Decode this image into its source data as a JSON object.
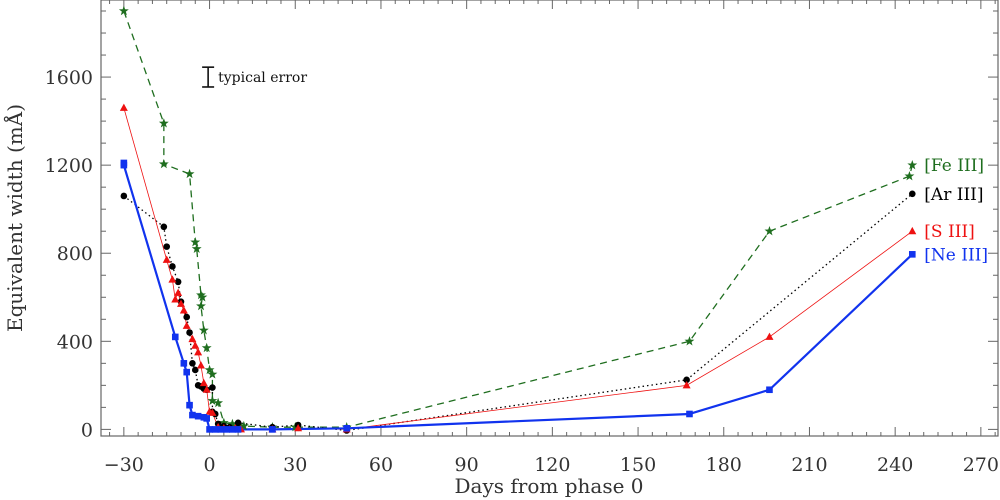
{
  "chart_data": {
    "type": "line",
    "xlabel": "Days from phase 0",
    "ylabel": "Equivalent width (mÅ)",
    "xlim": [
      -38,
      276
    ],
    "ylim": [
      -30,
      1950
    ],
    "x_ticks": [
      -30,
      0,
      30,
      60,
      90,
      120,
      150,
      180,
      210,
      240,
      270
    ],
    "y_ticks": [
      0,
      400,
      800,
      1200,
      1600
    ],
    "grid": false,
    "legend": "inline-right",
    "annotation": {
      "label": "typical error",
      "x": -0.5,
      "y_center": 1600,
      "half_height": 45
    },
    "series": [
      {
        "name": "[Fe III]",
        "color": "#1f6e1f",
        "dash": "7,5",
        "width": 1.3,
        "marker": "star",
        "points": [
          [
            -30,
            1900
          ],
          [
            -16,
            1390
          ],
          [
            -16,
            1205
          ],
          [
            -7,
            1160
          ],
          [
            -5,
            850
          ],
          [
            -4.5,
            820
          ],
          [
            -3,
            610
          ],
          [
            -2.5,
            600
          ],
          [
            -3,
            560
          ],
          [
            -2,
            450
          ],
          [
            -1,
            370
          ],
          [
            0,
            270
          ],
          [
            1,
            250
          ],
          [
            1,
            130
          ],
          [
            3,
            120
          ],
          [
            5,
            30
          ],
          [
            8,
            25
          ],
          [
            10,
            20
          ],
          [
            12,
            15
          ],
          [
            22,
            10
          ],
          [
            30,
            10
          ],
          [
            48,
            10
          ],
          [
            168,
            400
          ],
          [
            196,
            900
          ],
          [
            245,
            1150
          ],
          [
            246,
            1200
          ]
        ]
      },
      {
        "name": "[Ar III]",
        "color": "#000000",
        "dash": "1.5,3",
        "width": 1.3,
        "marker": "circle",
        "points": [
          [
            -30,
            1060
          ],
          [
            -16,
            920
          ],
          [
            -15,
            830
          ],
          [
            -13,
            740
          ],
          [
            -11,
            670
          ],
          [
            -10,
            580
          ],
          [
            -8,
            510
          ],
          [
            -7,
            440
          ],
          [
            -6,
            300
          ],
          [
            -5,
            270
          ],
          [
            -4,
            200
          ],
          [
            -3,
            195
          ],
          [
            -2,
            185
          ],
          [
            -1,
            180
          ],
          [
            1,
            190
          ],
          [
            1,
            80
          ],
          [
            2,
            70
          ],
          [
            3,
            25
          ],
          [
            5,
            15
          ],
          [
            7,
            10
          ],
          [
            10,
            30
          ],
          [
            22,
            10
          ],
          [
            31,
            20
          ],
          [
            48,
            -5
          ],
          [
            167,
            225
          ],
          [
            246,
            1070
          ]
        ]
      },
      {
        "name": "[S III]",
        "color": "#ee1111",
        "dash": "",
        "width": 0.8,
        "marker": "triangle",
        "points": [
          [
            -30,
            1460
          ],
          [
            -15,
            770
          ],
          [
            -13,
            680
          ],
          [
            -12,
            590
          ],
          [
            -11,
            620
          ],
          [
            -10,
            570
          ],
          [
            -9,
            540
          ],
          [
            -8,
            470
          ],
          [
            -6,
            410
          ],
          [
            -5,
            380
          ],
          [
            -4,
            350
          ],
          [
            -3,
            290
          ],
          [
            -2,
            210
          ],
          [
            -1,
            180
          ],
          [
            0,
            80
          ],
          [
            1,
            75
          ],
          [
            3,
            10
          ],
          [
            5,
            5
          ],
          [
            7,
            0
          ],
          [
            9,
            5
          ],
          [
            11,
            0
          ],
          [
            22,
            0
          ],
          [
            31,
            5
          ],
          [
            48,
            0
          ],
          [
            167,
            200
          ],
          [
            196,
            420
          ],
          [
            246,
            900
          ]
        ]
      },
      {
        "name": "[Ne III]",
        "color": "#1133ee",
        "dash": "",
        "width": 2.2,
        "marker": "square",
        "points": [
          [
            -30,
            1210
          ],
          [
            -30,
            1200
          ],
          [
            -12,
            420
          ],
          [
            -9,
            300
          ],
          [
            -8,
            260
          ],
          [
            -7,
            110
          ],
          [
            -6,
            65
          ],
          [
            -4,
            60
          ],
          [
            -2,
            55
          ],
          [
            -1,
            50
          ],
          [
            0,
            0
          ],
          [
            2,
            0
          ],
          [
            4,
            0
          ],
          [
            6,
            0
          ],
          [
            8,
            0
          ],
          [
            10,
            0
          ],
          [
            22,
            0
          ],
          [
            48,
            5
          ],
          [
            168,
            70
          ],
          [
            196,
            180
          ],
          [
            246,
            795
          ]
        ]
      }
    ]
  }
}
